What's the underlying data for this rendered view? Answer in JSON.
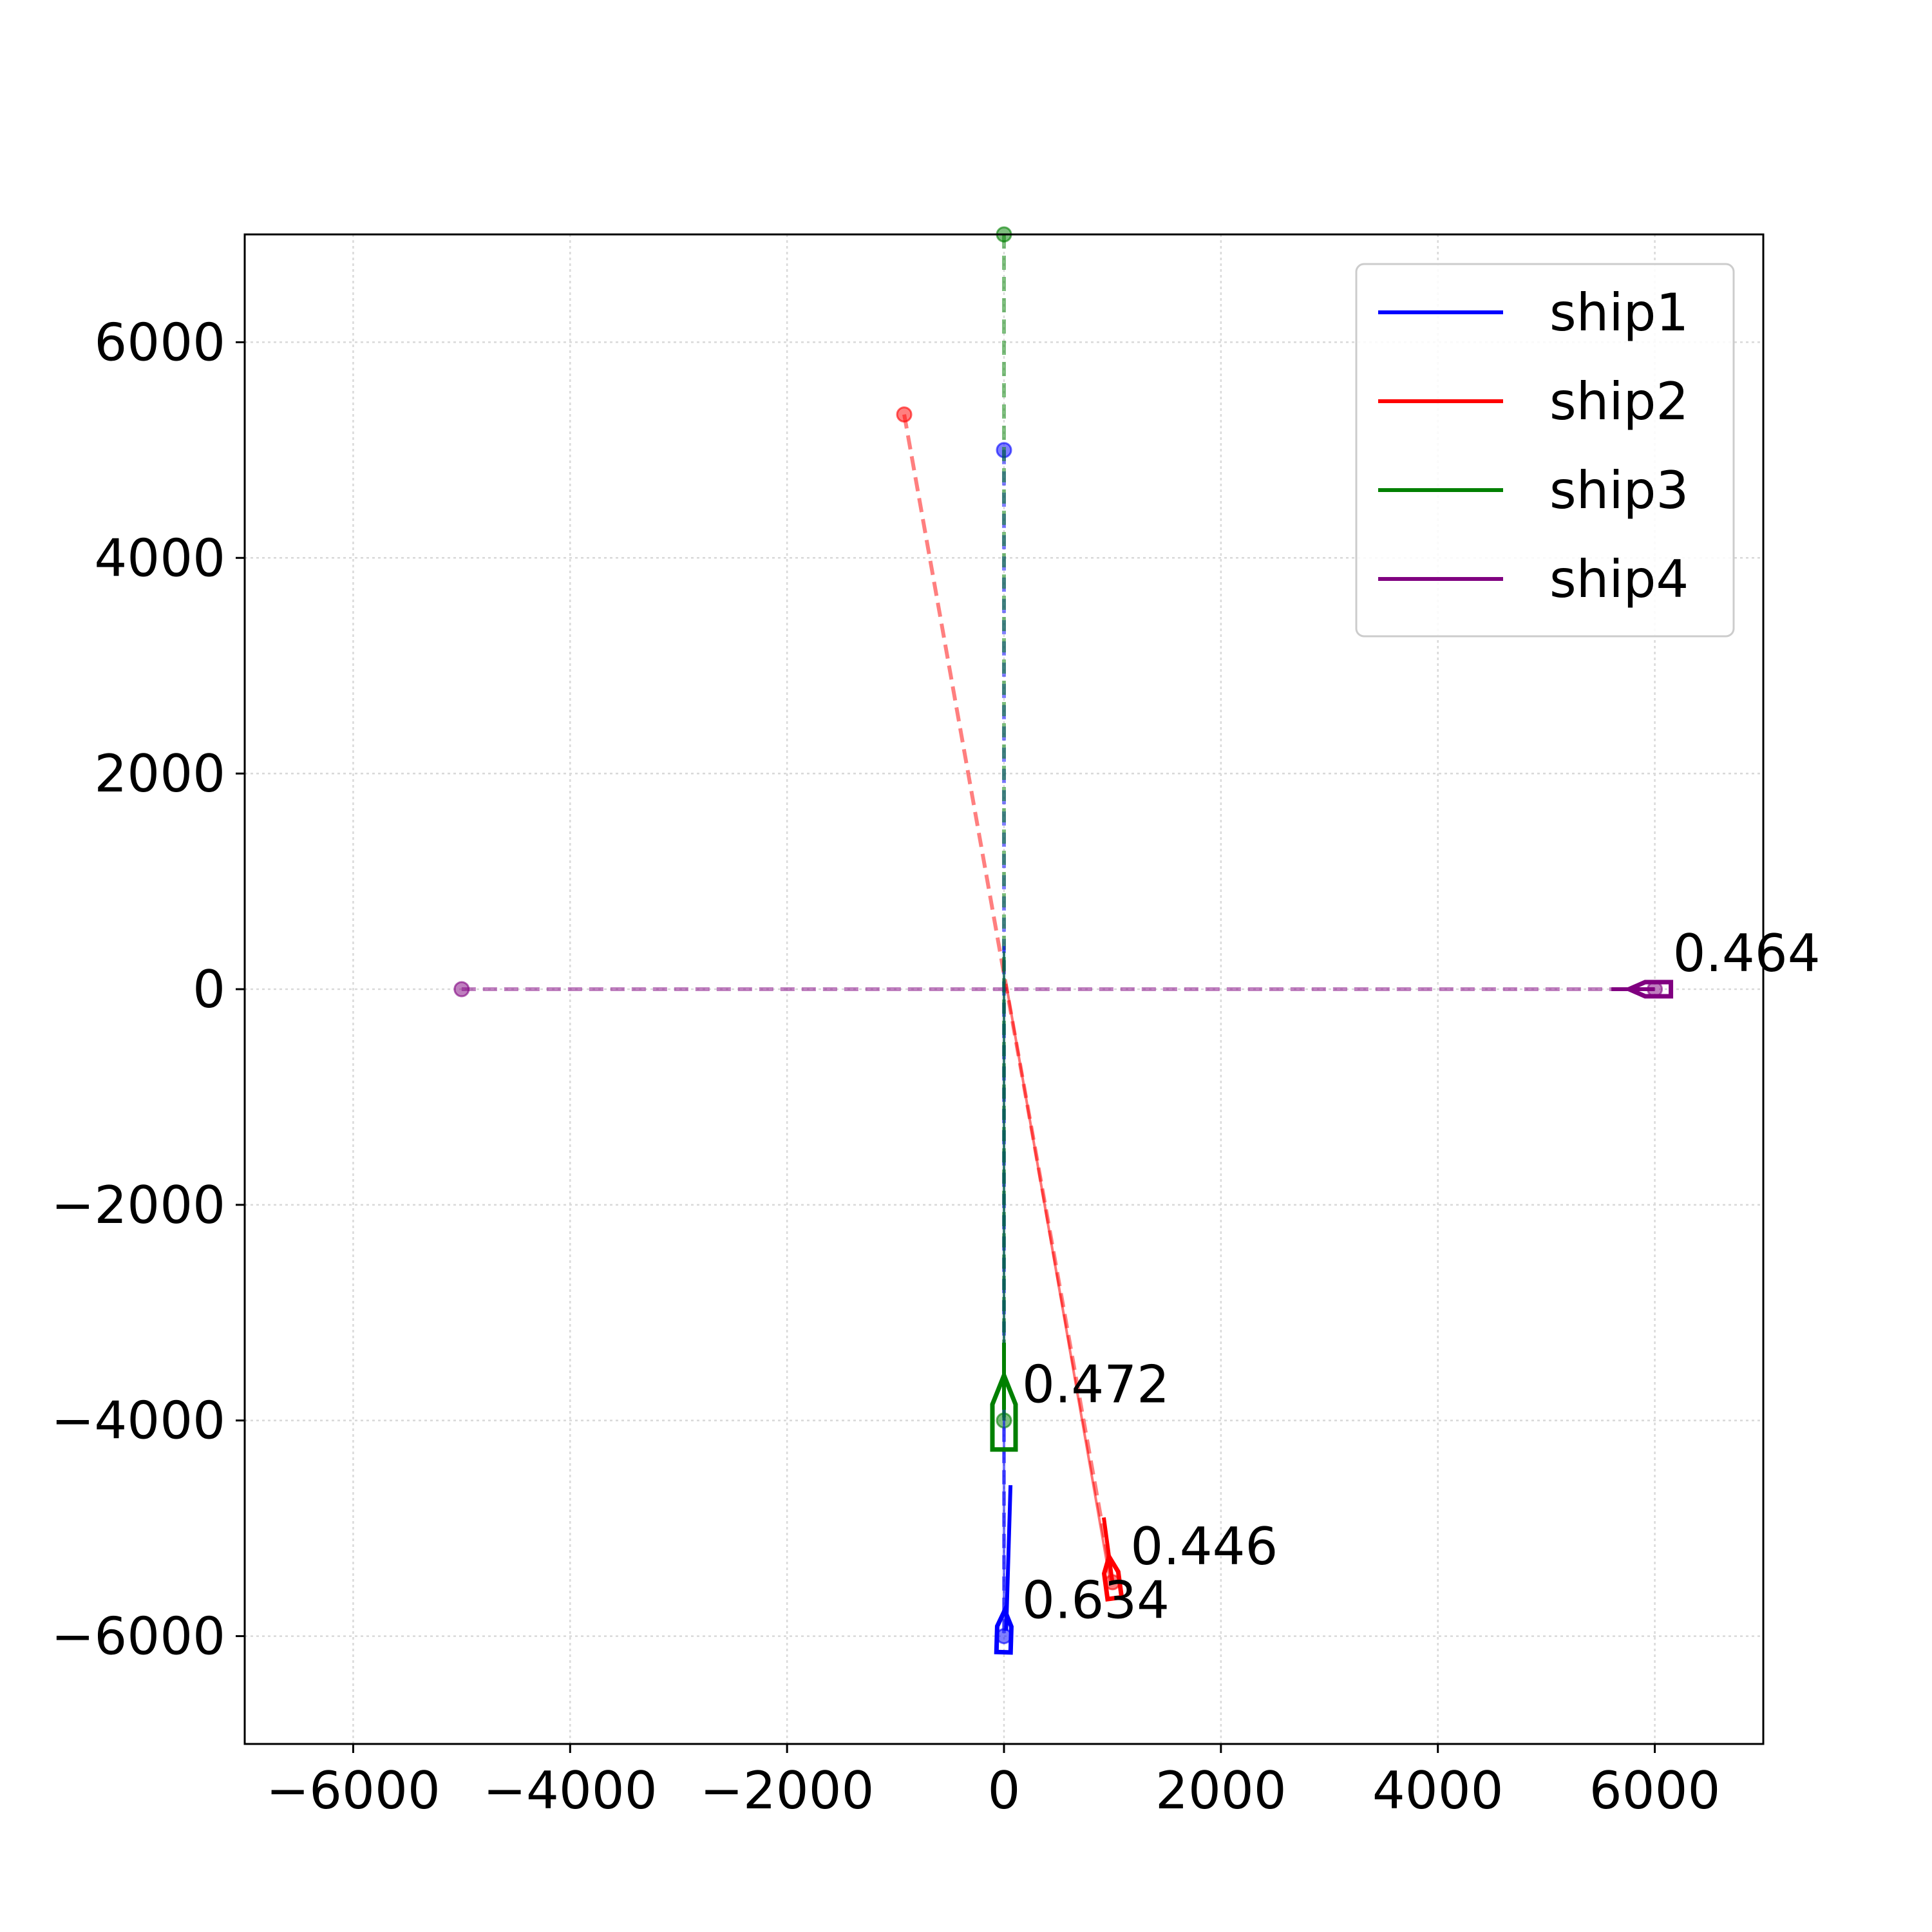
{
  "chart_data": {
    "type": "line",
    "xlim": [
      -7000,
      7000
    ],
    "ylim": [
      -7000,
      7000
    ],
    "x_ticks": [
      -6000,
      -4000,
      -2000,
      0,
      2000,
      4000,
      6000
    ],
    "y_ticks": [
      -6000,
      -4000,
      -2000,
      0,
      2000,
      4000,
      6000
    ],
    "x_tick_labels": [
      "−6000",
      "−4000",
      "−2000",
      "0",
      "2000",
      "4000",
      "6000"
    ],
    "y_tick_labels": [
      "−6000",
      "−4000",
      "−2000",
      "0",
      "2000",
      "4000",
      "6000"
    ],
    "grid": true,
    "legend_position": "top-right",
    "series": [
      {
        "name": "ship1",
        "color": "#0000ff",
        "start": [
          0,
          5000
        ],
        "end": [
          0,
          -6000
        ],
        "track": [
          [
            0,
            400
          ],
          [
            0,
            -5950
          ]
        ],
        "heading_line": [
          [
            60,
            -4600
          ],
          [
            20,
            -5950
          ]
        ],
        "annotation": "0.634",
        "annotation_at": [
          0,
          -6000
        ]
      },
      {
        "name": "ship2",
        "color": "#ff0000",
        "start": [
          -920,
          5330
        ],
        "end": [
          1000,
          -5500
        ],
        "track": [
          [
            20,
            50
          ],
          [
            980,
            -5500
          ]
        ],
        "heading_line": [
          [
            920,
            -4900
          ],
          [
            1000,
            -5500
          ]
        ],
        "annotation": "0.446",
        "annotation_at": [
          1000,
          -5500
        ]
      },
      {
        "name": "ship3",
        "color": "#008000",
        "start": [
          0,
          7000
        ],
        "end": [
          0,
          -4000
        ],
        "track": [
          [
            0,
            350
          ],
          [
            0,
            -4000
          ]
        ],
        "heading_line": [
          [
            0,
            -3280
          ],
          [
            0,
            -3900
          ]
        ],
        "annotation": "0.472",
        "annotation_at": [
          0,
          -4000
        ]
      },
      {
        "name": "ship4",
        "color": "#800080",
        "start": [
          -5000,
          0
        ],
        "end": [
          6000,
          0
        ],
        "track": [
          [
            5600,
            0
          ],
          [
            6000,
            0
          ]
        ],
        "heading_line": [
          [
            5600,
            0
          ],
          [
            6000,
            0
          ]
        ],
        "annotation": "0.464",
        "annotation_at": [
          6000,
          0
        ]
      }
    ]
  }
}
